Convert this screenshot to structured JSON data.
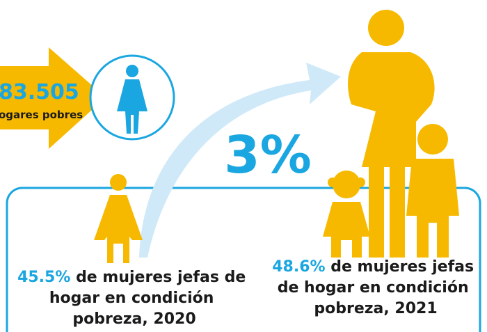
{
  "header": {
    "count": "83.505",
    "count_label": "ogares pobres"
  },
  "change": "3%",
  "left_stat": {
    "value": "45.5%",
    "lines": [
      "de mujeres jefas de",
      "hogar en condición",
      "pobreza, 2020"
    ]
  },
  "right_stat": {
    "value": "48.6%",
    "lines": [
      "de mujeres jefas",
      "de hogar en condición",
      "pobreza, 2021"
    ]
  }
}
